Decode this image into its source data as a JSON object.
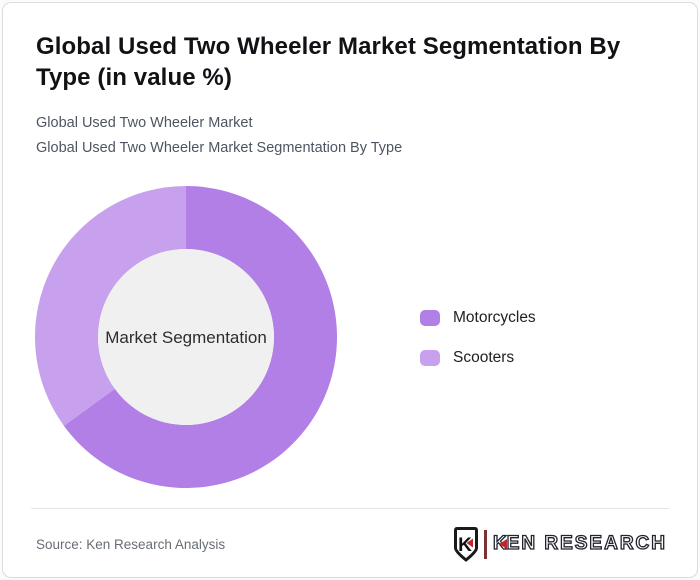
{
  "card": {
    "background": "#ffffff",
    "border_color": "#dbdbe1"
  },
  "header": {
    "title": "Global Used Two Wheeler Market Segmentation By Type (in value %)",
    "subtitle_line1": "Global Used Two Wheeler Market",
    "subtitle_line2": "Global Used Two Wheeler Market Segmentation By Type"
  },
  "chart_data": {
    "type": "pie",
    "subtype": "donut",
    "title": "Global Used Two Wheeler Market Segmentation By Type (in value %)",
    "center_label": "Market Segmentation",
    "categories": [
      "Motorcycles",
      "Scooters"
    ],
    "values": [
      65,
      35
    ],
    "unit": "value %",
    "colors": [
      "#b27fe7",
      "#c7a1ed"
    ],
    "hole_color": "#f0f0f0",
    "start_angle_deg": 0,
    "direction": "clockwise",
    "legend_position": "right",
    "data_labels_shown": false,
    "outer_radius_px": 151,
    "inner_radius_px": 88
  },
  "footer": {
    "source": "Source: Ken Research Analysis",
    "logo": {
      "emblem_letter": "K",
      "brand_k": "K",
      "brand_rest": "EN RESEARCH",
      "accent_color": "#c0272d",
      "text_color": "#23232f"
    }
  }
}
